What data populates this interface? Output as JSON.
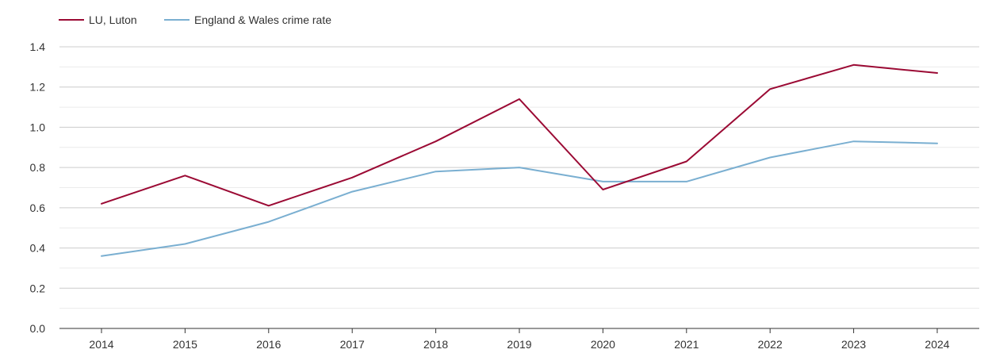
{
  "chart_data": {
    "type": "line",
    "x": [
      "2014",
      "2015",
      "2016",
      "2017",
      "2018",
      "2019",
      "2020",
      "2021",
      "2022",
      "2023",
      "2024"
    ],
    "series": [
      {
        "name": "LU, Luton",
        "color": "#9b0a34",
        "values": [
          0.62,
          0.76,
          0.61,
          0.75,
          0.93,
          1.14,
          0.69,
          0.83,
          1.19,
          1.31,
          1.27
        ]
      },
      {
        "name": "England & Wales crime rate",
        "color": "#7aafd1",
        "values": [
          0.36,
          0.42,
          0.53,
          0.68,
          0.78,
          0.8,
          0.73,
          0.73,
          0.85,
          0.93,
          0.92
        ]
      }
    ],
    "ylim": [
      0,
      1.4
    ],
    "yticks": [
      "0.0",
      "0.2",
      "0.4",
      "0.6",
      "0.8",
      "1.0",
      "1.2",
      "1.4"
    ],
    "grid": true,
    "legend_position": "top-left"
  }
}
